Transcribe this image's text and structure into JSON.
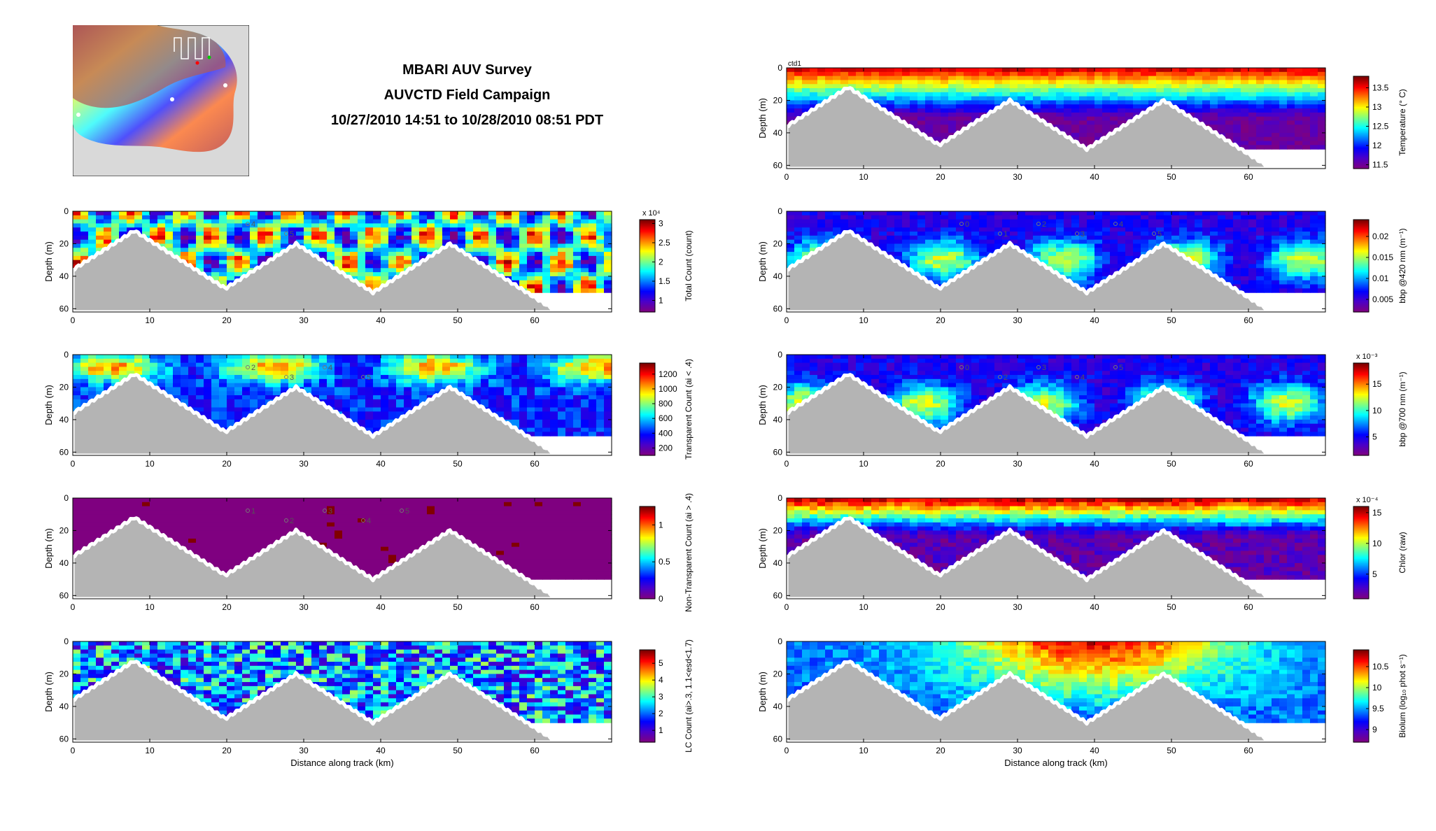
{
  "title": {
    "line1": "MBARI AUV Survey",
    "line2": "AUVCTD Field Campaign",
    "line3": "10/27/2010 14:51 to 10/28/2010 08:51 PDT"
  },
  "map_inset": {
    "land_color": "#d9d9d9",
    "track_color": "#ffffff",
    "marker_colors": [
      "#ff0000",
      "#00cc00"
    ]
  },
  "colormap": [
    "#7f0080",
    "#4b00c8",
    "#0000ff",
    "#0080ff",
    "#00ffff",
    "#80ff80",
    "#ffff00",
    "#ff8000",
    "#ff0000",
    "#800000"
  ],
  "seafloor_color": "#b4b4b4",
  "chart_data": [
    {
      "id": "total-count",
      "type": "heatmap",
      "ylabel": "Depth (m)",
      "xlabel": "",
      "xlim": [
        0,
        70
      ],
      "ylim": [
        62,
        0
      ],
      "xticks": [
        "0",
        "10",
        "20",
        "30",
        "40",
        "50",
        "60"
      ],
      "yticks": [
        "0",
        "20",
        "40",
        "60"
      ],
      "colorbar": {
        "label": "Total Count (count)",
        "exponent": "x 10⁴",
        "ticks": [
          "1",
          "1.5",
          "2",
          "2.5",
          "3"
        ],
        "range": [
          0.7,
          3.1
        ]
      },
      "station_labels": [
        "4",
        "5"
      ]
    },
    {
      "id": "transparent-count",
      "type": "heatmap",
      "ylabel": "Depth (m)",
      "xlabel": "",
      "xlim": [
        0,
        70
      ],
      "ylim": [
        62,
        0
      ],
      "xticks": [
        "0",
        "10",
        "20",
        "30",
        "40",
        "50",
        "60"
      ],
      "yticks": [
        "0",
        "20",
        "40",
        "60"
      ],
      "colorbar": {
        "label": "Transparent Count (ai < .4)",
        "exponent": "",
        "ticks": [
          "200",
          "400",
          "600",
          "800",
          "1000",
          "1200"
        ],
        "range": [
          100,
          1350
        ]
      },
      "station_labels": [
        "2",
        "3",
        "4",
        "5"
      ]
    },
    {
      "id": "non-transparent-count",
      "type": "heatmap",
      "ylabel": "Depth (m)",
      "xlabel": "",
      "xlim": [
        0,
        70
      ],
      "ylim": [
        62,
        0
      ],
      "xticks": [
        "0",
        "10",
        "20",
        "30",
        "40",
        "50",
        "60"
      ],
      "yticks": [
        "0",
        "20",
        "40",
        "60"
      ],
      "colorbar": {
        "label": "Non-Transparent Count (ai > .4)",
        "exponent": "",
        "ticks": [
          "0",
          "0.5",
          "1"
        ],
        "range": [
          0,
          1.25
        ]
      },
      "station_labels": [
        "1",
        "2",
        "3",
        "4",
        "5"
      ]
    },
    {
      "id": "lc-count",
      "type": "heatmap",
      "ylabel": "Depth (m)",
      "xlabel": "Distance along track (km)",
      "xlim": [
        0,
        70
      ],
      "ylim": [
        62,
        0
      ],
      "xticks": [
        "0",
        "10",
        "20",
        "30",
        "40",
        "50",
        "60"
      ],
      "yticks": [
        "0",
        "20",
        "40",
        "60"
      ],
      "colorbar": {
        "label": "LC Count (ai>.3, 1.1<esd<1.7)",
        "exponent": "",
        "ticks": [
          "1",
          "2",
          "3",
          "4",
          "5"
        ],
        "range": [
          0.3,
          5.8
        ]
      },
      "station_labels": []
    },
    {
      "id": "temperature",
      "type": "heatmap",
      "ylabel": "Depth (m)",
      "xlabel": "",
      "corner_label": "ctd1",
      "xlim": [
        0,
        70
      ],
      "ylim": [
        62,
        0
      ],
      "xticks": [
        "0",
        "10",
        "20",
        "30",
        "40",
        "50",
        "60"
      ],
      "yticks": [
        "0",
        "20",
        "40",
        "60"
      ],
      "colorbar": {
        "label": "Temperature (° C)",
        "exponent": "",
        "ticks": [
          "11.5",
          "12",
          "12.5",
          "13",
          "13.5"
        ],
        "range": [
          11.4,
          13.8
        ]
      },
      "station_labels": []
    },
    {
      "id": "bbp-420",
      "type": "heatmap",
      "ylabel": "Depth (m)",
      "xlabel": "",
      "xlim": [
        0,
        70
      ],
      "ylim": [
        62,
        0
      ],
      "xticks": [
        "0",
        "10",
        "20",
        "30",
        "40",
        "50",
        "60"
      ],
      "yticks": [
        "0",
        "20",
        "40",
        "60"
      ],
      "colorbar": {
        "label": "bbp @420 nm (m⁻¹)",
        "exponent": "",
        "ticks": [
          "0.005",
          "0.01",
          "0.015",
          "0.02"
        ],
        "range": [
          0.002,
          0.024
        ]
      },
      "station_labels": [
        "0",
        "1",
        "2",
        "3",
        "4",
        "5"
      ]
    },
    {
      "id": "bbp-700",
      "type": "heatmap",
      "ylabel": "Depth (m)",
      "xlabel": "",
      "xlim": [
        0,
        70
      ],
      "ylim": [
        62,
        0
      ],
      "xticks": [
        "0",
        "10",
        "20",
        "30",
        "40",
        "50",
        "60"
      ],
      "yticks": [
        "0",
        "20",
        "40",
        "60"
      ],
      "colorbar": {
        "label": "bbp @700 nm (m⁻¹)",
        "exponent": "x 10⁻³",
        "ticks": [
          "5",
          "10",
          "15"
        ],
        "range": [
          1.5,
          19
        ]
      },
      "station_labels": [
        "0",
        "2",
        "3",
        "4",
        "5"
      ]
    },
    {
      "id": "chlor",
      "type": "heatmap",
      "ylabel": "Depth (m)",
      "xlabel": "",
      "xlim": [
        0,
        70
      ],
      "ylim": [
        62,
        0
      ],
      "xticks": [
        "0",
        "10",
        "20",
        "30",
        "40",
        "50",
        "60"
      ],
      "yticks": [
        "0",
        "20",
        "40",
        "60"
      ],
      "colorbar": {
        "label": "Chlor (raw)",
        "exponent": "x 10⁻⁴",
        "ticks": [
          "5",
          "10",
          "15"
        ],
        "range": [
          1,
          16
        ]
      },
      "station_labels": []
    },
    {
      "id": "biolum",
      "type": "heatmap",
      "ylabel": "Depth (m)",
      "xlabel": "Distance along track (km)",
      "xlim": [
        0,
        70
      ],
      "ylim": [
        62,
        0
      ],
      "xticks": [
        "0",
        "10",
        "20",
        "30",
        "40",
        "50",
        "60"
      ],
      "yticks": [
        "0",
        "20",
        "40",
        "60"
      ],
      "colorbar": {
        "label": "Biolum (log₁₀ phot s⁻¹)",
        "exponent": "",
        "ticks": [
          "9",
          "9.5",
          "10",
          "10.5"
        ],
        "range": [
          8.7,
          10.9
        ]
      },
      "station_labels": []
    }
  ]
}
